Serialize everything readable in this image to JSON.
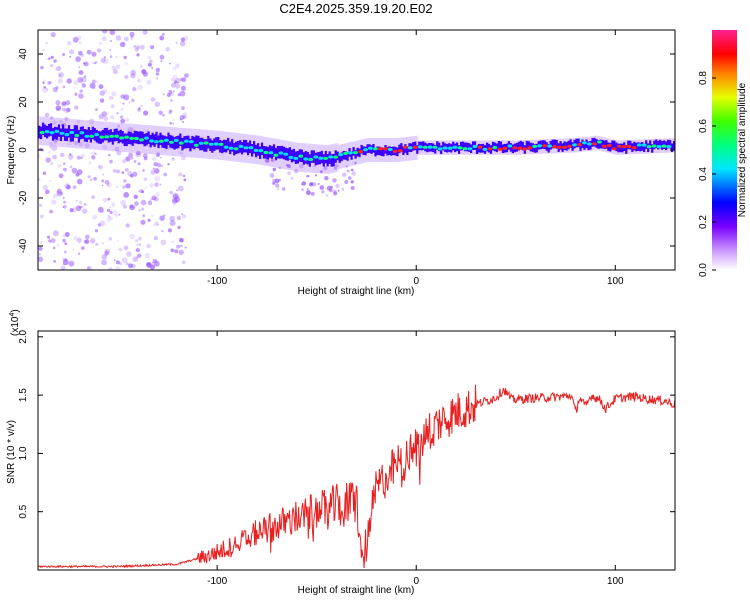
{
  "figure_title": "C2E4.2025.359.19.20.E02",
  "colors": {
    "band": "#3b00ff",
    "band_core": "#00e0ff",
    "band_hot": "#ff2020",
    "speckle": "#9b59ff",
    "snr_line": "#e82020",
    "axis": "#000000"
  },
  "chart_data": [
    {
      "id": "spectrogram",
      "type": "heatmap",
      "title": "C2E4.2025.359.19.20.E02",
      "xlabel": "Height of straight line (km)",
      "ylabel": "Frequency (Hz)",
      "xlim": [
        -190,
        130
      ],
      "ylim": [
        -50,
        50
      ],
      "xticks": [
        -100,
        0,
        100
      ],
      "yticks": [
        -40,
        -20,
        0,
        20,
        40
      ],
      "band_center": {
        "x": [
          -190,
          -160,
          -130,
          -100,
          -80,
          -60,
          -45,
          -35,
          -25,
          -10,
          0,
          20,
          50,
          80,
          90,
          100,
          130
        ],
        "y": [
          8,
          6,
          4,
          2,
          0,
          -3,
          -4,
          -2,
          0,
          0,
          1,
          1,
          1,
          2,
          3,
          1,
          2
        ]
      },
      "colorbar": {
        "label": "Normalized spectral amplitude",
        "range": [
          0,
          1
        ],
        "ticks": [
          0.0,
          0.2,
          0.4,
          0.6,
          0.8
        ]
      }
    },
    {
      "id": "snr",
      "type": "line",
      "xlabel": "Height of straight line (km)",
      "ylabel": "SNR (10 * v/v)",
      "multiplier_label": "(x10",
      "multiplier_exp": "4",
      "multiplier_close": ")",
      "xlim": [
        -190,
        130
      ],
      "ylim": [
        0,
        2.05
      ],
      "xticks": [
        -100,
        0,
        100
      ],
      "yticks": [
        0.5,
        1.0,
        1.5,
        2.0
      ],
      "series": [
        {
          "name": "SNR",
          "x": [
            -190,
            -150,
            -120,
            -105,
            -90,
            -80,
            -70,
            -60,
            -50,
            -40,
            -30,
            -27,
            -20,
            -15,
            -10,
            -5,
            0,
            5,
            10,
            20,
            30,
            40,
            44,
            48,
            55,
            65,
            75,
            78,
            80,
            82,
            85,
            88,
            90,
            93,
            95,
            100,
            105,
            110,
            115,
            120,
            125,
            130
          ],
          "y": [
            0.03,
            0.03,
            0.05,
            0.12,
            0.22,
            0.32,
            0.38,
            0.45,
            0.5,
            0.55,
            0.6,
            0.05,
            0.7,
            0.8,
            0.9,
            0.95,
            1.05,
            1.15,
            1.25,
            1.35,
            1.42,
            1.48,
            1.55,
            1.46,
            1.47,
            1.48,
            1.49,
            1.5,
            1.35,
            1.48,
            1.4,
            1.5,
            1.48,
            1.45,
            1.38,
            1.47,
            1.48,
            1.49,
            1.47,
            1.46,
            1.45,
            1.42
          ]
        }
      ]
    }
  ]
}
